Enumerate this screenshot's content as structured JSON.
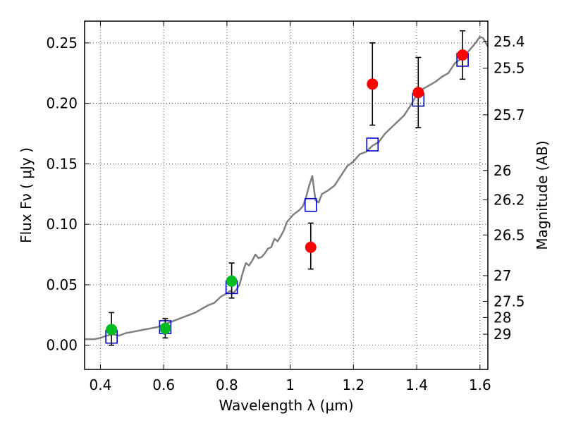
{
  "chart_data": {
    "type": "scatter",
    "xlabel": "Wavelength  λ (μm)",
    "ylabel": "Flux  Fν  ( μJy )",
    "ylabel_right": "Magnitude (AB)",
    "xlim": [
      0.35,
      1.625
    ],
    "ylim": [
      -0.02,
      0.268
    ],
    "grid": true,
    "x_ticks": [
      {
        "value": 0.4,
        "label": "0.4"
      },
      {
        "value": 0.6,
        "label": "0.6"
      },
      {
        "value": 0.8,
        "label": "0.8"
      },
      {
        "value": 1.0,
        "label": "1"
      },
      {
        "value": 1.2,
        "label": "1.2"
      },
      {
        "value": 1.4,
        "label": "1.4"
      },
      {
        "value": 1.6,
        "label": "1.6"
      }
    ],
    "y_ticks": [
      {
        "value": 0.0,
        "label": "0.00"
      },
      {
        "value": 0.05,
        "label": "0.05"
      },
      {
        "value": 0.1,
        "label": "0.10"
      },
      {
        "value": 0.15,
        "label": "0.15"
      },
      {
        "value": 0.2,
        "label": "0.20"
      },
      {
        "value": 0.25,
        "label": "0.25"
      }
    ],
    "right_ticks": [
      {
        "value": 25.4,
        "label": "25.4"
      },
      {
        "value": 25.5,
        "label": "25.5"
      },
      {
        "value": 25.7,
        "label": "25.7"
      },
      {
        "value": 26.0,
        "label": "26"
      },
      {
        "value": 26.2,
        "label": "26.2"
      },
      {
        "value": 26.5,
        "label": "26.5"
      },
      {
        "value": 27.0,
        "label": "27"
      },
      {
        "value": 27.5,
        "label": "27.5"
      },
      {
        "value": 28.0,
        "label": "28"
      },
      {
        "value": 29.0,
        "label": "29"
      }
    ],
    "series": [
      {
        "kind": "line",
        "color": "#808080",
        "points": [
          [
            0.35,
            0.005
          ],
          [
            0.38,
            0.005
          ],
          [
            0.4,
            0.006
          ],
          [
            0.42,
            0.008
          ],
          [
            0.44,
            0.009
          ],
          [
            0.46,
            0.008
          ],
          [
            0.48,
            0.01
          ],
          [
            0.5,
            0.011
          ],
          [
            0.52,
            0.012
          ],
          [
            0.54,
            0.013
          ],
          [
            0.56,
            0.014
          ],
          [
            0.58,
            0.015
          ],
          [
            0.6,
            0.017
          ],
          [
            0.62,
            0.019
          ],
          [
            0.64,
            0.021
          ],
          [
            0.66,
            0.023
          ],
          [
            0.68,
            0.025
          ],
          [
            0.7,
            0.027
          ],
          [
            0.72,
            0.03
          ],
          [
            0.74,
            0.033
          ],
          [
            0.76,
            0.035
          ],
          [
            0.78,
            0.04
          ],
          [
            0.8,
            0.043
          ],
          [
            0.81,
            0.045
          ],
          [
            0.82,
            0.043
          ],
          [
            0.83,
            0.046
          ],
          [
            0.84,
            0.05
          ],
          [
            0.85,
            0.06
          ],
          [
            0.86,
            0.068
          ],
          [
            0.87,
            0.066
          ],
          [
            0.88,
            0.07
          ],
          [
            0.89,
            0.075
          ],
          [
            0.9,
            0.072
          ],
          [
            0.91,
            0.073
          ],
          [
            0.92,
            0.076
          ],
          [
            0.93,
            0.08
          ],
          [
            0.94,
            0.081
          ],
          [
            0.95,
            0.088
          ],
          [
            0.96,
            0.086
          ],
          [
            0.97,
            0.09
          ],
          [
            0.98,
            0.095
          ],
          [
            0.99,
            0.102
          ],
          [
            1.0,
            0.105
          ],
          [
            1.01,
            0.108
          ],
          [
            1.02,
            0.11
          ],
          [
            1.03,
            0.112
          ],
          [
            1.04,
            0.115
          ],
          [
            1.05,
            0.122
          ],
          [
            1.06,
            0.132
          ],
          [
            1.07,
            0.14
          ],
          [
            1.08,
            0.12
          ],
          [
            1.09,
            0.118
          ],
          [
            1.1,
            0.125
          ],
          [
            1.12,
            0.128
          ],
          [
            1.14,
            0.132
          ],
          [
            1.16,
            0.14
          ],
          [
            1.18,
            0.148
          ],
          [
            1.2,
            0.152
          ],
          [
            1.22,
            0.158
          ],
          [
            1.24,
            0.16
          ],
          [
            1.26,
            0.165
          ],
          [
            1.28,
            0.168
          ],
          [
            1.3,
            0.175
          ],
          [
            1.32,
            0.18
          ],
          [
            1.34,
            0.185
          ],
          [
            1.36,
            0.19
          ],
          [
            1.38,
            0.198
          ],
          [
            1.4,
            0.207
          ],
          [
            1.42,
            0.212
          ],
          [
            1.44,
            0.215
          ],
          [
            1.46,
            0.218
          ],
          [
            1.48,
            0.222
          ],
          [
            1.5,
            0.225
          ],
          [
            1.52,
            0.233
          ],
          [
            1.54,
            0.237
          ],
          [
            1.56,
            0.242
          ],
          [
            1.58,
            0.248
          ],
          [
            1.6,
            0.255
          ],
          [
            1.61,
            0.254
          ],
          [
            1.625,
            0.247
          ]
        ]
      },
      {
        "kind": "squares",
        "color": "#0000cc",
        "points": [
          [
            0.435,
            0.007
          ],
          [
            0.605,
            0.015
          ],
          [
            0.815,
            0.048
          ],
          [
            1.065,
            0.116
          ],
          [
            1.26,
            0.166
          ],
          [
            1.405,
            0.203
          ],
          [
            1.545,
            0.236
          ]
        ]
      },
      {
        "kind": "points",
        "color": "#00bb22",
        "points": [
          {
            "x": 0.435,
            "y": 0.013,
            "ylo": 0.0,
            "yhi": 0.027
          },
          {
            "x": 0.605,
            "y": 0.014,
            "ylo": 0.006,
            "yhi": 0.022
          },
          {
            "x": 0.815,
            "y": 0.053,
            "ylo": 0.039,
            "yhi": 0.068
          }
        ]
      },
      {
        "kind": "points",
        "color": "#ff0000",
        "points": [
          {
            "x": 1.065,
            "y": 0.081,
            "ylo": 0.063,
            "yhi": 0.101
          },
          {
            "x": 1.26,
            "y": 0.216,
            "ylo": 0.182,
            "yhi": 0.25
          },
          {
            "x": 1.405,
            "y": 0.209,
            "ylo": 0.18,
            "yhi": 0.238
          },
          {
            "x": 1.545,
            "y": 0.24,
            "ylo": 0.22,
            "yhi": 0.26
          }
        ]
      }
    ]
  }
}
